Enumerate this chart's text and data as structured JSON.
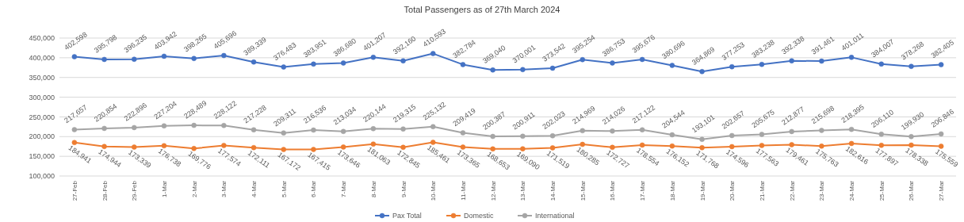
{
  "chart_data": {
    "type": "line",
    "title": "Total Passengers as of 27th March 2024",
    "categories": [
      "27-Feb",
      "28-Feb",
      "29-Feb",
      "1-Mar",
      "2-Mar",
      "3-Mar",
      "4-Mar",
      "5-Mar",
      "6-Mar",
      "7-Mar",
      "8-Mar",
      "9-Mar",
      "10-Mar",
      "11-Mar",
      "12-Mar",
      "13-Mar",
      "14-Mar",
      "15-Mar",
      "16-Mar",
      "17-Mar",
      "18-Mar",
      "19-Mar",
      "20-Mar",
      "21-Mar",
      "22-Mar",
      "23-Mar",
      "24-Mar",
      "25-Mar",
      "26-Mar",
      "27-Mar"
    ],
    "series": [
      {
        "name": "Pax Total",
        "color": "#4472c4",
        "values": [
          402598,
          395798,
          396235,
          403942,
          398265,
          405696,
          389339,
          376483,
          383951,
          386680,
          401207,
          392160,
          410593,
          382784,
          369040,
          370001,
          373542,
          395254,
          386753,
          395676,
          380696,
          364869,
          377253,
          383238,
          392338,
          391461,
          401011,
          384007,
          378268,
          382405
        ],
        "value_labels": [
          "402,598",
          "395,798",
          "396,235",
          "403,942",
          "398,265",
          "405,696",
          "389,339",
          "376,483",
          "383,951",
          "386,680",
          "401,207",
          "392,160",
          "410,593",
          "382,784",
          "369,040",
          "370,001",
          "373,542",
          "395,254",
          "386,753",
          "395,676",
          "380,696",
          "364,869",
          "377,253",
          "383,238",
          "392,338",
          "391,461",
          "401,011",
          "384,007",
          "378,268",
          "382,405"
        ]
      },
      {
        "name": "Domestic",
        "color": "#ed7d31",
        "values": [
          184941,
          174944,
          173339,
          176738,
          169776,
          177574,
          172111,
          167172,
          167415,
          173646,
          181063,
          172845,
          185461,
          173365,
          168653,
          169090,
          171519,
          180285,
          172727,
          178554,
          176152,
          171768,
          174596,
          177563,
          179461,
          175763,
          182616,
          177897,
          178338,
          175559
        ],
        "value_labels": [
          "184,941",
          "174,944",
          "173,339",
          "176,738",
          "169,776",
          "177,574",
          "172,111",
          "167,172",
          "167,415",
          "173,646",
          "181,063",
          "172,845",
          "185,461",
          "173,365",
          "168,653",
          "169,090",
          "171,519",
          "180,285",
          "172,727",
          "178,554",
          "176,152",
          "171,768",
          "174,596",
          "177,563",
          "179,461",
          "175,763",
          "182,616",
          "177,897",
          "178,338",
          "175,559"
        ]
      },
      {
        "name": "International",
        "color": "#a5a5a5",
        "values": [
          217657,
          220854,
          222896,
          227204,
          228489,
          228122,
          217228,
          209311,
          216536,
          213034,
          220144,
          219315,
          225132,
          209419,
          200387,
          200911,
          202023,
          214969,
          214026,
          217122,
          204544,
          193101,
          202657,
          205675,
          212877,
          215698,
          218395,
          206110,
          199930,
          206846
        ],
        "value_labels": [
          "217,657",
          "220,854",
          "222,896",
          "227,204",
          "228,489",
          "228,122",
          "217,228",
          "209,311",
          "216,536",
          "213,034",
          "220,144",
          "219,315",
          "225,132",
          "209,419",
          "200,387",
          "200,911",
          "202,023",
          "214,969",
          "214,026",
          "217,122",
          "204,544",
          "193,101",
          "202,657",
          "205,675",
          "212,877",
          "215,698",
          "218,395",
          "206,110",
          "199,930",
          "206,846"
        ]
      }
    ],
    "ylim": [
      100000,
      450000
    ],
    "yticks": [
      {
        "value": 100000,
        "label": "100,000"
      },
      {
        "value": 150000,
        "label": "150,000"
      },
      {
        "value": 200000,
        "label": "200,000"
      },
      {
        "value": 250000,
        "label": "250,000"
      },
      {
        "value": 300000,
        "label": "300,000"
      },
      {
        "value": 350000,
        "label": "350,000"
      },
      {
        "value": 400000,
        "label": "400,000"
      },
      {
        "value": 450000,
        "label": "450,000"
      }
    ],
    "grid": "y",
    "legend": "bottom",
    "marker": "circle",
    "line_style": "solid"
  }
}
